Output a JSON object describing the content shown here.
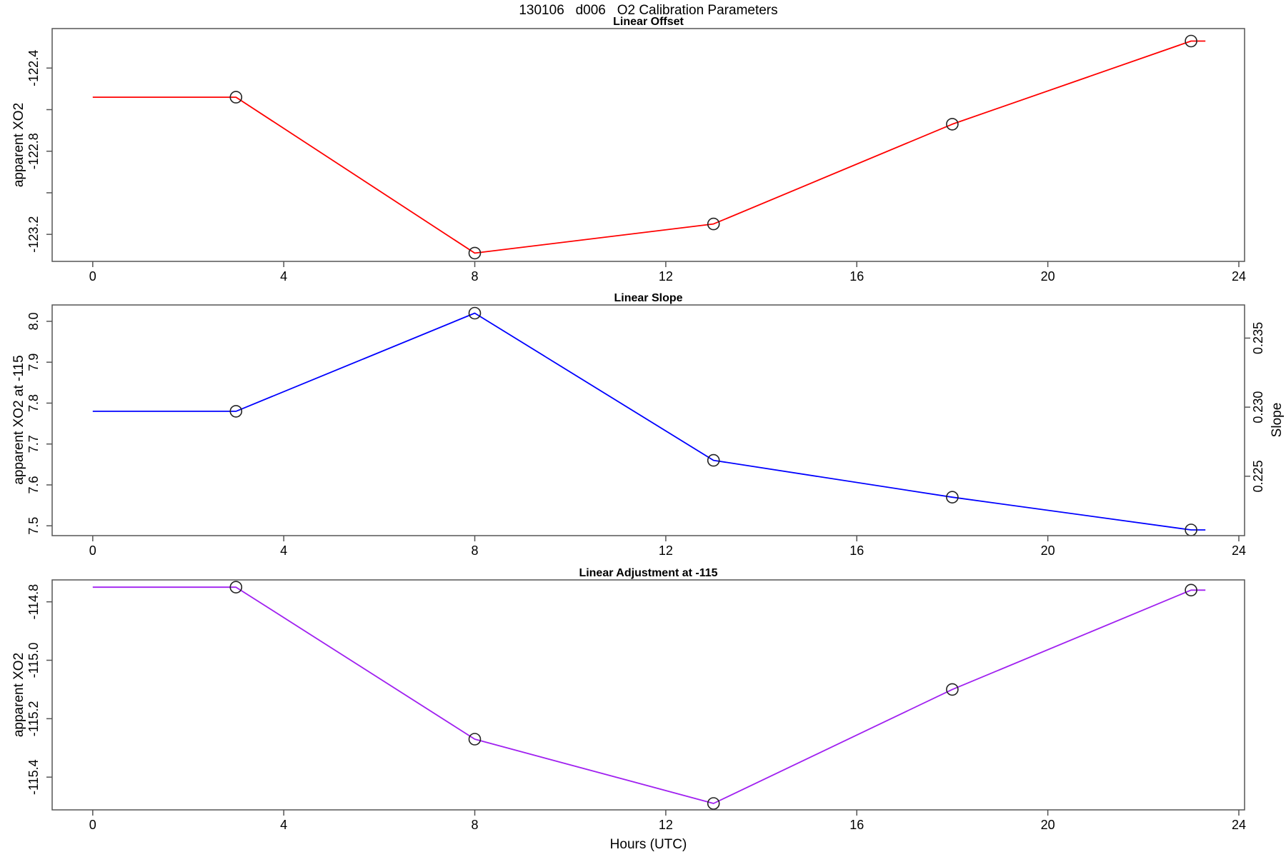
{
  "figure": {
    "title": "130106   d006   O2 Calibration Parameters",
    "xlabel": "Hours (UTC)"
  },
  "chart_data": [
    {
      "type": "line",
      "title": "Linear Offset",
      "ylabel": "apparent XO2",
      "color": "#FF0000",
      "x": [
        0,
        3,
        8,
        13,
        18,
        23,
        23.3
      ],
      "y": [
        -122.54,
        -122.54,
        -123.29,
        -123.15,
        -122.67,
        -122.27,
        -122.27
      ],
      "markers": {
        "x": [
          3,
          8,
          13,
          18,
          23
        ],
        "y": [
          -122.54,
          -123.29,
          -123.15,
          -122.67,
          -122.27
        ]
      },
      "xlim": [
        -0.85,
        24.12
      ],
      "ylim": [
        -123.33,
        -122.21
      ],
      "xticks": {
        "values": [
          0,
          4,
          8,
          12,
          16,
          20,
          24
        ],
        "labels": [
          "0",
          "4",
          "8",
          "12",
          "16",
          "20",
          "24"
        ]
      },
      "yticks": {
        "values": [
          -122.4,
          -122.6,
          -122.8,
          -123.0,
          -123.2
        ],
        "labels": [
          "-122.4",
          "",
          "-122.8",
          "",
          "-123.2"
        ]
      },
      "grid": false,
      "marker_style": "open-circle"
    },
    {
      "type": "line",
      "title": "Linear Slope",
      "ylabel": "apparent XO2 at -115",
      "ylabel_right": "Slope",
      "color": "#0000FF",
      "x": [
        0,
        3,
        8,
        13,
        18,
        23,
        23.3
      ],
      "y": [
        7.78,
        7.78,
        8.02,
        7.66,
        7.57,
        7.49,
        7.49
      ],
      "markers": {
        "x": [
          3,
          8,
          13,
          18,
          23
        ],
        "y": [
          7.78,
          8.02,
          7.66,
          7.57,
          7.49
        ]
      },
      "xlim": [
        -0.85,
        24.12
      ],
      "ylim": [
        7.476,
        8.04
      ],
      "ylim_right": [
        0.2207,
        0.2374
      ],
      "xticks": {
        "values": [
          0,
          4,
          8,
          12,
          16,
          20,
          24
        ],
        "labels": [
          "0",
          "4",
          "8",
          "12",
          "16",
          "20",
          "24"
        ]
      },
      "yticks": {
        "values": [
          8.0,
          7.9,
          7.8,
          7.7,
          7.6,
          7.5
        ],
        "labels": [
          "8.0",
          "7.9",
          "7.8",
          "7.7",
          "7.6",
          "7.5"
        ]
      },
      "yticks_right": {
        "values": [
          0.235,
          0.23,
          0.225
        ],
        "labels": [
          "0.235",
          "0.230",
          "0.225"
        ]
      },
      "grid": false,
      "marker_style": "open-circle"
    },
    {
      "type": "line",
      "title": "Linear Adjustment at -115",
      "ylabel": "apparent XO2",
      "color": "#A020F0",
      "x": [
        0,
        3,
        8,
        13,
        18,
        23,
        23.3
      ],
      "y": [
        -114.75,
        -114.75,
        -115.27,
        -115.49,
        -115.1,
        -114.76,
        -114.76
      ],
      "markers": {
        "x": [
          3,
          8,
          13,
          18,
          23
        ],
        "y": [
          -114.75,
          -115.27,
          -115.49,
          -115.1,
          -114.76
        ]
      },
      "xlim": [
        -0.85,
        24.12
      ],
      "ylim": [
        -115.512,
        -114.725
      ],
      "xticks": {
        "values": [
          0,
          4,
          8,
          12,
          16,
          20,
          24
        ],
        "labels": [
          "0",
          "4",
          "8",
          "12",
          "16",
          "20",
          "24"
        ]
      },
      "yticks": {
        "values": [
          -114.8,
          -115.0,
          -115.2,
          -115.4
        ],
        "labels": [
          "-114.8",
          "-115.0",
          "-115.2",
          "-115.4"
        ]
      },
      "grid": false,
      "marker_style": "open-circle"
    }
  ]
}
